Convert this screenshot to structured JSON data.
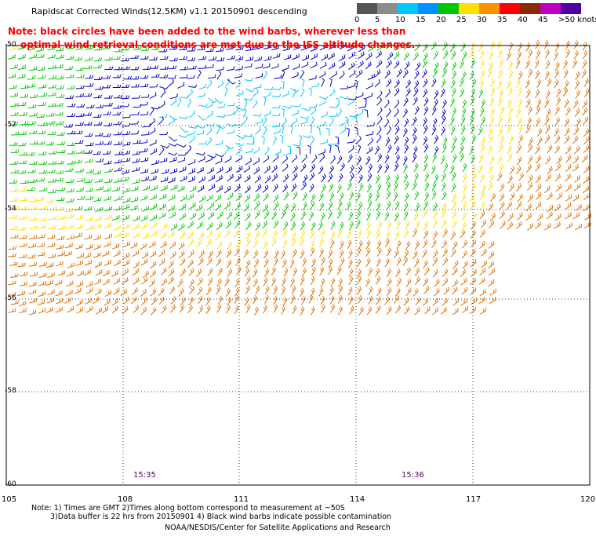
{
  "header": {
    "title": "Rapidscat Corrected Winds(12.5KM) v1.1 20150901 descending",
    "note_line1": "Note: black circles have been added to the wind barbs, wherever less than",
    "note_line2": "optimal wind retrieval conditions are met due to the ISS altitude changes."
  },
  "scale": {
    "labels": [
      "0",
      "5",
      "10",
      "15",
      "20",
      "25",
      "30",
      "35",
      "40",
      "45",
      ">50 knots"
    ],
    "colors": [
      "#555555",
      "#8c8c8c",
      "#00c8ff",
      "#0090ff",
      "#00c800",
      "#ffe000",
      "#ff9000",
      "#ff0000",
      "#8b2a00",
      "#c000c0",
      "#5000a0"
    ]
  },
  "axes": {
    "lat_labels": [
      "-50",
      "-52",
      "-54",
      "-56",
      "-58",
      "-60"
    ],
    "lon_labels": [
      "105",
      "108",
      "111",
      "114",
      "117",
      "120"
    ]
  },
  "pass_times": [
    "15:35",
    "15:36"
  ],
  "footer": {
    "line1": "Note: 1) Times are GMT 2)Times along bottom correspond to measurement at ~50S",
    "line2": "3)Data buffer is 22 hrs from 20150901 4) Black wind barbs indicate possible contamination",
    "line3": "NOAA/NESDIS/Center for Satellite Applications and Research"
  }
}
